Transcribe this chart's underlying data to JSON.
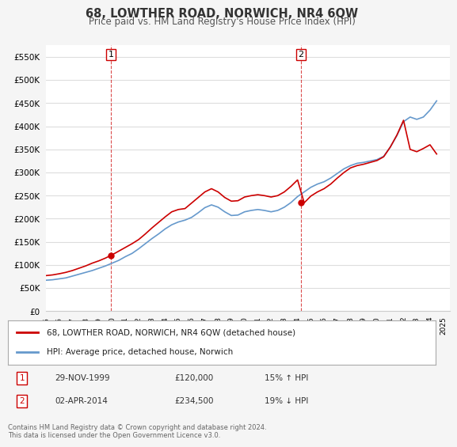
{
  "title": "68, LOWTHER ROAD, NORWICH, NR4 6QW",
  "subtitle": "Price paid vs. HM Land Registry's House Price Index (HPI)",
  "hpi_label": "HPI: Average price, detached house, Norwich",
  "property_label": "68, LOWTHER ROAD, NORWICH, NR4 6QW (detached house)",
  "property_color": "#cc0000",
  "hpi_color": "#6699cc",
  "background_color": "#f5f5f5",
  "plot_bg_color": "#ffffff",
  "ylim": [
    0,
    575000
  ],
  "yticks": [
    0,
    50000,
    100000,
    150000,
    200000,
    250000,
    300000,
    350000,
    400000,
    450000,
    500000,
    550000
  ],
  "ylabel_format": "£{0}K",
  "sale1": {
    "date": "29-NOV-1999",
    "price": 120000,
    "hpi_pct": "15% ↑ HPI",
    "marker_x": 1999.9,
    "marker_y": 120000,
    "label": "1"
  },
  "sale2": {
    "date": "02-APR-2014",
    "price": 234500,
    "hpi_pct": "19% ↓ HPI",
    "marker_x": 2014.25,
    "marker_y": 234500,
    "label": "2"
  },
  "footnote": "Contains HM Land Registry data © Crown copyright and database right 2024.\nThis data is licensed under the Open Government Licence v3.0.",
  "xmin": 1995,
  "xmax": 2025.5,
  "grid_color": "#dddddd",
  "vline1_x": 1999.9,
  "vline2_x": 2014.25,
  "vline_color": "#cc0000",
  "hpi_x": [
    1995,
    1995.5,
    1996,
    1996.5,
    1997,
    1997.5,
    1998,
    1998.5,
    1999,
    1999.5,
    2000,
    2000.5,
    2001,
    2001.5,
    2002,
    2002.5,
    2003,
    2003.5,
    2004,
    2004.5,
    2005,
    2005.5,
    2006,
    2006.5,
    2007,
    2007.5,
    2008,
    2008.5,
    2009,
    2009.5,
    2010,
    2010.5,
    2011,
    2011.5,
    2012,
    2012.5,
    2013,
    2013.5,
    2014,
    2014.5,
    2015,
    2015.5,
    2016,
    2016.5,
    2017,
    2017.5,
    2018,
    2018.5,
    2019,
    2019.5,
    2020,
    2020.5,
    2021,
    2021.5,
    2022,
    2022.5,
    2023,
    2023.5,
    2024,
    2024.5
  ],
  "hpi_y": [
    67000,
    68000,
    70000,
    72000,
    76000,
    80000,
    84000,
    88000,
    93000,
    98000,
    104000,
    110000,
    118000,
    125000,
    135000,
    146000,
    157000,
    167000,
    178000,
    187000,
    193000,
    197000,
    203000,
    213000,
    224000,
    230000,
    225000,
    215000,
    207000,
    208000,
    215000,
    218000,
    220000,
    218000,
    215000,
    218000,
    225000,
    235000,
    248000,
    258000,
    268000,
    275000,
    280000,
    288000,
    298000,
    308000,
    315000,
    320000,
    322000,
    325000,
    328000,
    335000,
    355000,
    380000,
    410000,
    420000,
    415000,
    420000,
    435000,
    455000
  ],
  "prop_x": [
    1995,
    1995.5,
    1996,
    1996.5,
    1997,
    1997.5,
    1998,
    1998.5,
    1999,
    1999.5,
    2000,
    2000.5,
    2001,
    2001.5,
    2002,
    2002.5,
    2003,
    2003.5,
    2004,
    2004.5,
    2005,
    2005.5,
    2006,
    2006.5,
    2007,
    2007.5,
    2008,
    2008.5,
    2009,
    2009.5,
    2010,
    2010.5,
    2011,
    2011.5,
    2012,
    2012.5,
    2013,
    2013.5,
    2014,
    2014.5,
    2015,
    2015.5,
    2016,
    2016.5,
    2017,
    2017.5,
    2018,
    2018.5,
    2019,
    2019.5,
    2020,
    2020.5,
    2021,
    2021.5,
    2022,
    2022.5,
    2023,
    2023.5,
    2024,
    2024.5
  ],
  "prop_y": [
    77000,
    78500,
    81000,
    84000,
    88000,
    93000,
    98000,
    104000,
    109000,
    115000,
    122000,
    130000,
    138000,
    146000,
    155000,
    167000,
    180000,
    192000,
    204000,
    215000,
    220000,
    222000,
    234000,
    246000,
    258000,
    265000,
    258000,
    246000,
    238000,
    239000,
    247000,
    250000,
    252000,
    250000,
    247000,
    250000,
    258000,
    270000,
    284000,
    234500,
    249000,
    258000,
    265000,
    275000,
    288000,
    300000,
    310000,
    315000,
    318000,
    322000,
    326000,
    334000,
    355000,
    381000,
    413000,
    350000,
    345000,
    352000,
    360000,
    340000
  ]
}
